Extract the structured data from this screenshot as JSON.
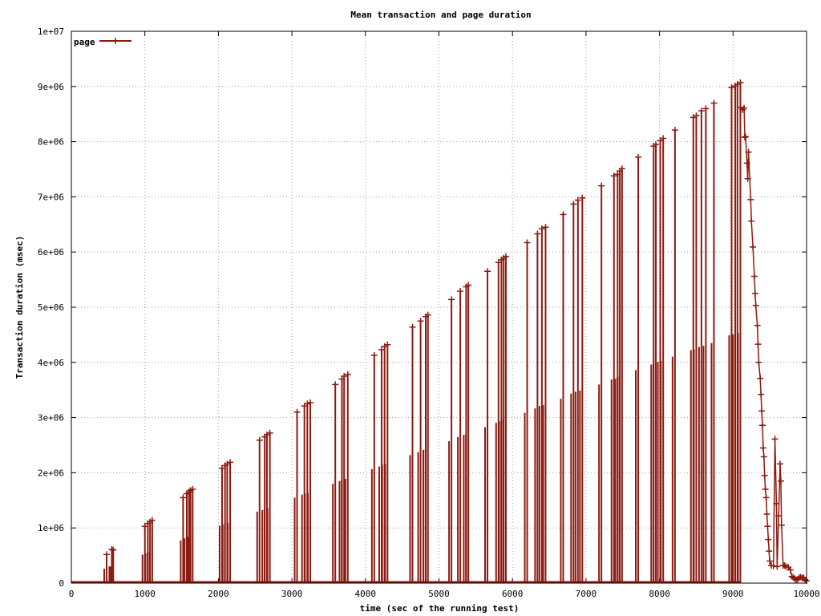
{
  "chart_data": {
    "type": "line",
    "title": "Mean transaction and page duration",
    "xlabel": "time (sec of the running test)",
    "ylabel": "Transaction duration (msec)",
    "xlim": [
      0,
      10000
    ],
    "ylim": [
      0,
      10000000
    ],
    "x_ticks": [
      "0",
      "1000",
      "2000",
      "3000",
      "4000",
      "5000",
      "6000",
      "7000",
      "8000",
      "9000",
      "10000"
    ],
    "y_ticks": [
      "0",
      "1e+06",
      "2e+06",
      "3e+06",
      "4e+06",
      "5e+06",
      "6e+06",
      "7e+06",
      "8e+06",
      "9e+06",
      "1e+07"
    ],
    "grid": true,
    "legend_position": "top-left",
    "color": "#8b1a10",
    "series": [
      {
        "name": "page",
        "spikes": [
          [
            480,
            520000
          ],
          [
            550,
            610000
          ],
          [
            570,
            600000
          ],
          [
            1000,
            1030000
          ],
          [
            1040,
            1080000
          ],
          [
            1070,
            1110000
          ],
          [
            1100,
            1140000
          ],
          [
            1520,
            1550000
          ],
          [
            1570,
            1620000
          ],
          [
            1600,
            1650000
          ],
          [
            1620,
            1680000
          ],
          [
            1650,
            1700000
          ],
          [
            2050,
            2080000
          ],
          [
            2090,
            2130000
          ],
          [
            2120,
            2160000
          ],
          [
            2160,
            2190000
          ],
          [
            2560,
            2590000
          ],
          [
            2630,
            2650000
          ],
          [
            2660,
            2690000
          ],
          [
            2700,
            2720000
          ],
          [
            3070,
            3100000
          ],
          [
            3170,
            3210000
          ],
          [
            3210,
            3250000
          ],
          [
            3250,
            3270000
          ],
          [
            3590,
            3600000
          ],
          [
            3680,
            3700000
          ],
          [
            3710,
            3750000
          ],
          [
            3760,
            3780000
          ],
          [
            4120,
            4130000
          ],
          [
            4220,
            4230000
          ],
          [
            4260,
            4290000
          ],
          [
            4300,
            4320000
          ],
          [
            4640,
            4640000
          ],
          [
            4750,
            4750000
          ],
          [
            4820,
            4830000
          ],
          [
            4850,
            4860000
          ],
          [
            5170,
            5140000
          ],
          [
            5290,
            5290000
          ],
          [
            5370,
            5370000
          ],
          [
            5400,
            5400000
          ],
          [
            5660,
            5650000
          ],
          [
            5810,
            5810000
          ],
          [
            5850,
            5860000
          ],
          [
            5880,
            5890000
          ],
          [
            5910,
            5920000
          ],
          [
            6200,
            6170000
          ],
          [
            6340,
            6330000
          ],
          [
            6400,
            6420000
          ],
          [
            6450,
            6450000
          ],
          [
            6690,
            6680000
          ],
          [
            6830,
            6870000
          ],
          [
            6890,
            6940000
          ],
          [
            6950,
            6980000
          ],
          [
            7210,
            7200000
          ],
          [
            7380,
            7380000
          ],
          [
            7430,
            7410000
          ],
          [
            7460,
            7470000
          ],
          [
            7490,
            7510000
          ],
          [
            7710,
            7720000
          ],
          [
            7920,
            7920000
          ],
          [
            7950,
            7950000
          ],
          [
            8010,
            8020000
          ],
          [
            8050,
            8060000
          ],
          [
            8210,
            8210000
          ],
          [
            8460,
            8440000
          ],
          [
            8500,
            8470000
          ],
          [
            8570,
            8560000
          ],
          [
            8630,
            8600000
          ],
          [
            8740,
            8700000
          ],
          [
            8980,
            8980000
          ],
          [
            9030,
            9010000
          ],
          [
            9060,
            9040000
          ],
          [
            9100,
            9070000
          ]
        ],
        "decline": [
          [
            9100,
            8620000
          ],
          [
            9130,
            8580000
          ],
          [
            9150,
            8610000
          ],
          [
            9160,
            8080000
          ],
          [
            9170,
            8090000
          ],
          [
            9190,
            7610000
          ],
          [
            9200,
            7330000
          ],
          [
            9210,
            7810000
          ],
          [
            9240,
            6950000
          ],
          [
            9250,
            6560000
          ],
          [
            9270,
            6090000
          ],
          [
            9290,
            5560000
          ],
          [
            9300,
            5250000
          ],
          [
            9310,
            5030000
          ],
          [
            9330,
            4670000
          ],
          [
            9340,
            4330000
          ],
          [
            9350,
            4000000
          ],
          [
            9370,
            3710000
          ],
          [
            9380,
            3420000
          ],
          [
            9390,
            3120000
          ],
          [
            9400,
            2860000
          ],
          [
            9410,
            2450000
          ],
          [
            9420,
            2290000
          ],
          [
            9430,
            1950000
          ],
          [
            9440,
            1700000
          ],
          [
            9450,
            1550000
          ],
          [
            9460,
            1250000
          ],
          [
            9470,
            1030000
          ],
          [
            9480,
            790000
          ],
          [
            9490,
            580000
          ],
          [
            9500,
            400000
          ],
          [
            9520,
            320000
          ],
          [
            9550,
            310000
          ],
          [
            9570,
            2610000
          ],
          [
            9590,
            1440000
          ],
          [
            9600,
            300000
          ],
          [
            9620,
            1220000
          ],
          [
            9640,
            2160000
          ],
          [
            9650,
            1850000
          ],
          [
            9660,
            1050000
          ],
          [
            9680,
            320000
          ],
          [
            9700,
            320000
          ],
          [
            9720,
            300000
          ],
          [
            9750,
            290000
          ],
          [
            9780,
            240000
          ],
          [
            9800,
            120000
          ],
          [
            9820,
            100000
          ],
          [
            9840,
            80000
          ],
          [
            9860,
            60000
          ],
          [
            9880,
            70000
          ],
          [
            9900,
            100000
          ],
          [
            9920,
            110000
          ],
          [
            9940,
            90000
          ],
          [
            9960,
            100000
          ],
          [
            9980,
            60000
          ],
          [
            10000,
            40000
          ]
        ]
      }
    ]
  }
}
